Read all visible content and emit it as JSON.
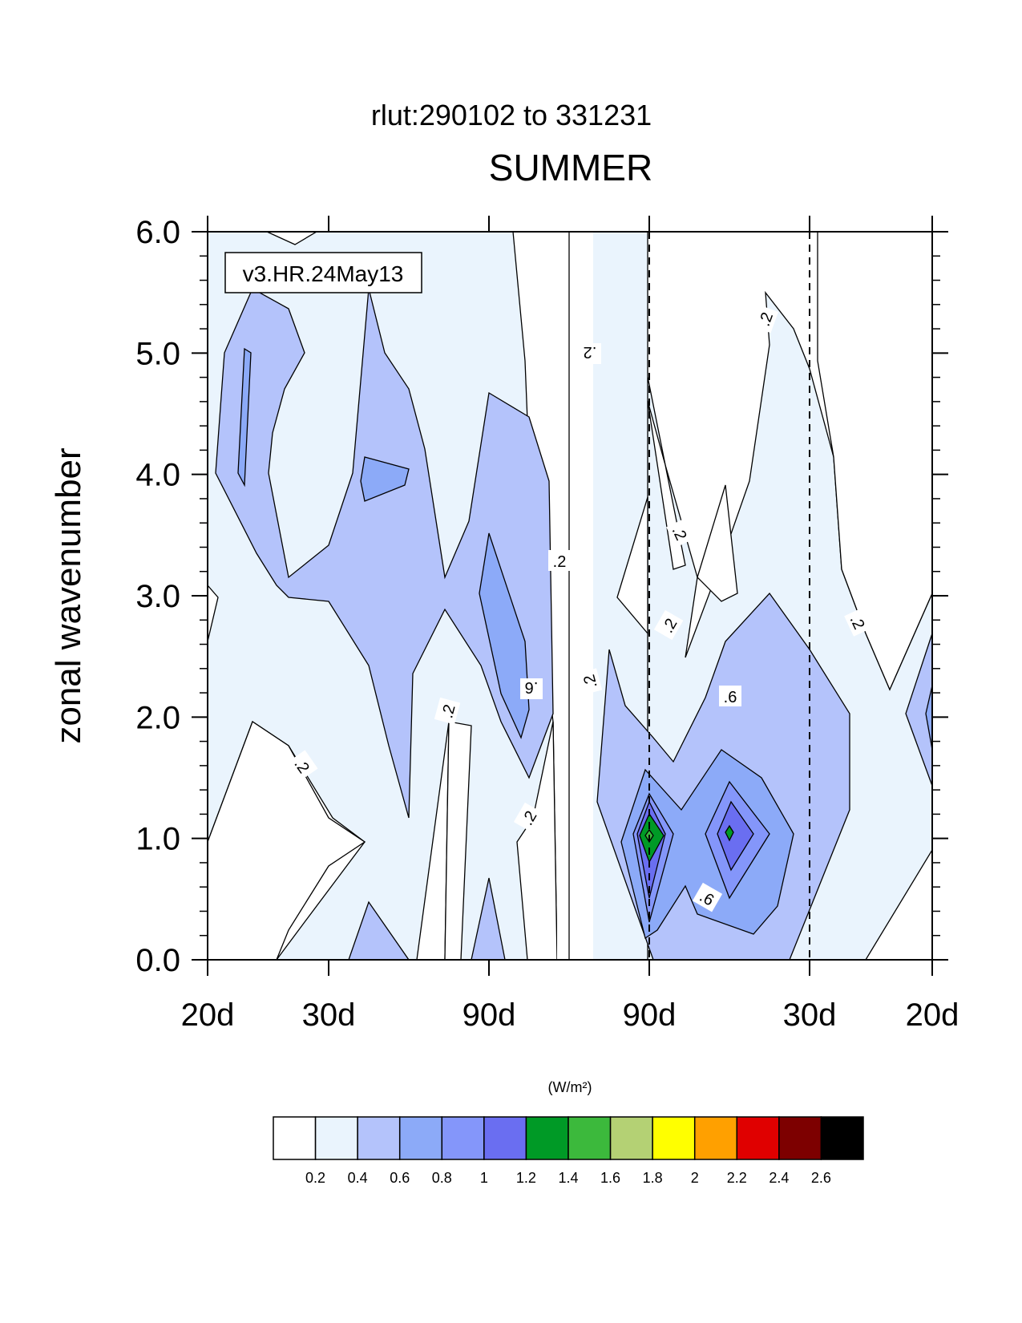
{
  "chart_data": {
    "type": "contour",
    "title": "SUMMER",
    "subtitle": "rlut:290102 to 331231",
    "ylabel": "zonal wavenumber",
    "annotation": "v3.HR.24May13",
    "ylim": [
      0,
      6
    ],
    "y_ticks": [
      "0.0",
      "1.0",
      "2.0",
      "3.0",
      "4.0",
      "5.0",
      "6.0"
    ],
    "x_ticks": [
      "20d",
      "30d",
      "90d",
      "90d",
      "30d",
      "20d"
    ],
    "colorbar": {
      "units": "(W/m²)",
      "levels": [
        "0.2",
        "0.4",
        "0.6",
        "0.8",
        "1",
        "1.2",
        "1.4",
        "1.6",
        "1.8",
        "2",
        "2.2",
        "2.4",
        "2.6"
      ],
      "colors": [
        "#ffffff",
        "#eaf4fd",
        "#b4c3fb",
        "#8caaf8",
        "#8496fa",
        "#6a6ef1",
        "#009a26",
        "#3cb93c",
        "#b4d174",
        "#ffff00",
        "#ffa000",
        "#e00000",
        "#7d0000",
        "#000000"
      ]
    },
    "contour_labels": [
      {
        "text": ".2"
      },
      {
        "text": ".2"
      },
      {
        "text": ".2"
      },
      {
        "text": ".2"
      },
      {
        "text": ".2"
      },
      {
        "text": ".2"
      },
      {
        "text": ".2"
      },
      {
        "text": ".2"
      },
      {
        "text": ".2"
      },
      {
        "text": ".2"
      },
      {
        "text": ".6"
      },
      {
        "text": ".6"
      },
      {
        "text": ".6"
      }
    ]
  }
}
